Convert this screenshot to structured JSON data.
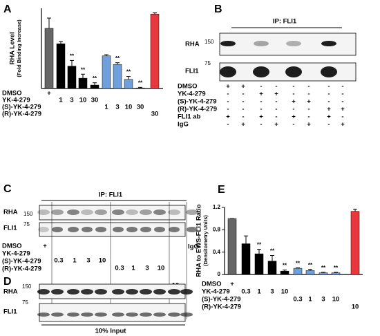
{
  "chart_data": [
    {
      "type": "bar",
      "panel": "A",
      "y_label": "RHA Level",
      "y_sublabel": "(Fold Binding Increase)",
      "values": [
        1.05,
        0.78,
        0.39,
        0.18,
        0.06,
        0.57,
        0.42,
        0.16,
        0.01,
        1.3
      ],
      "errors": [
        0.18,
        0.04,
        0.1,
        0.07,
        0.04,
        0.02,
        0.03,
        0.05,
        0.01,
        0.02
      ],
      "colors": [
        "#666666",
        "#000000",
        "#000000",
        "#000000",
        "#000000",
        "#6fa0dc",
        "#6fa0dc",
        "#6fa0dc",
        "#6fa0dc",
        "#e8383d"
      ],
      "significance": [
        null,
        null,
        "**",
        "**",
        "**",
        null,
        "**",
        "**",
        "**",
        null
      ],
      "ylim": [
        0,
        1.4
      ],
      "treatments": [
        {
          "label": "DMSO",
          "entries": [
            "+",
            null,
            null,
            null,
            null,
            null,
            null,
            null,
            null,
            null
          ]
        },
        {
          "label": "YK-4-279",
          "entries": [
            null,
            "1",
            "3",
            "10",
            "30",
            null,
            null,
            null,
            null,
            null
          ]
        },
        {
          "label": "(S)-YK-4-279",
          "entries": [
            null,
            null,
            null,
            null,
            null,
            "1",
            "3",
            "10",
            "30",
            null
          ]
        },
        {
          "label": "(R)-YK-4-279",
          "entries": [
            null,
            null,
            null,
            null,
            null,
            null,
            null,
            null,
            null,
            "30"
          ]
        }
      ]
    },
    {
      "type": "bar",
      "panel": "E",
      "y_label": "RHA to EWS-FLI1 Ratio",
      "y_sublabel": "(Densitometry Units)",
      "values": [
        1.0,
        0.55,
        0.37,
        0.24,
        0.06,
        0.11,
        0.07,
        0.03,
        0.03,
        1.13
      ],
      "errors": [
        0,
        0.14,
        0.08,
        0.1,
        0.02,
        0.01,
        0.02,
        0.01,
        0.01,
        0.04
      ],
      "colors": [
        "#666666",
        "#000000",
        "#000000",
        "#000000",
        "#000000",
        "#6fa0dc",
        "#6fa0dc",
        "#6fa0dc",
        "#6fa0dc",
        "#e8383d"
      ],
      "significance": [
        null,
        null,
        "**",
        "**",
        "**",
        "**",
        "**",
        "**",
        "**",
        null
      ],
      "ylim": [
        0,
        1.2
      ],
      "yticks": [
        0,
        0.4,
        0.8,
        1.2
      ],
      "treatments": [
        {
          "label": "DMSO",
          "entries": [
            "+",
            null,
            null,
            null,
            null,
            null,
            null,
            null,
            null,
            null
          ]
        },
        {
          "label": "YK-4-279",
          "entries": [
            null,
            "0.3",
            "1",
            "3",
            "10",
            null,
            null,
            null,
            null,
            null
          ]
        },
        {
          "label": "(S)-YK-4-279",
          "entries": [
            null,
            null,
            null,
            null,
            null,
            "0.3",
            "1",
            "3",
            "10",
            null
          ]
        },
        {
          "label": "(R)-YK-4-279",
          "entries": [
            null,
            null,
            null,
            null,
            null,
            null,
            null,
            null,
            null,
            "10"
          ]
        }
      ]
    }
  ],
  "blots": {
    "B": {
      "panel": "B",
      "title": "IP: FLI1",
      "bands": [
        {
          "label": "RHA",
          "marker": "150"
        },
        {
          "label": "FLI1",
          "marker": "75"
        }
      ],
      "treatments": [
        {
          "label": "DMSO",
          "entries": [
            "+",
            "+",
            "-",
            "-",
            "-",
            "-",
            "-",
            "-"
          ]
        },
        {
          "label": "YK-4-279",
          "entries": [
            "-",
            "-",
            "+",
            "+",
            "-",
            "-",
            "-",
            "-"
          ]
        },
        {
          "label": "(S)-YK-4-279",
          "entries": [
            "-",
            "-",
            "-",
            "-",
            "+",
            "+",
            "-",
            "-"
          ]
        },
        {
          "label": "(R)-YK-4-279",
          "entries": [
            "-",
            "-",
            "-",
            "-",
            "-",
            "-",
            "+",
            "+"
          ]
        },
        {
          "label": "FLI1 ab",
          "entries": [
            "+",
            "-",
            "+",
            "-",
            "+",
            "-",
            "+",
            "-"
          ]
        },
        {
          "label": "IgG",
          "entries": [
            "-",
            "+",
            "-",
            "+",
            "-",
            "+",
            "-",
            "+"
          ]
        }
      ]
    },
    "C": {
      "panel": "C",
      "title": "IP: FLI1",
      "bands": [
        {
          "label": "RHA",
          "marker": "150"
        },
        {
          "label": "FLI1",
          "marker": "75"
        }
      ],
      "treatments": [
        {
          "label": "DMSO",
          "entries": [
            "+",
            null,
            null,
            null,
            null,
            null,
            null,
            null,
            null,
            null
          ]
        },
        {
          "label": "YK-4-279",
          "entries": [
            null,
            "0.3",
            "1",
            "3",
            "10",
            null,
            null,
            null,
            null,
            null
          ]
        },
        {
          "label": "(S)-YK-4-279",
          "entries": [
            null,
            null,
            null,
            null,
            null,
            "0.3",
            "1",
            "3",
            "10",
            null
          ]
        },
        {
          "label": "(R)-YK-4-279",
          "entries": [
            null,
            null,
            null,
            null,
            null,
            null,
            null,
            null,
            null,
            "10"
          ]
        }
      ],
      "control_label": "IgG"
    },
    "D": {
      "panel": "D",
      "bands": [
        {
          "label": "RHA",
          "marker": "150"
        },
        {
          "label": "FLI1",
          "marker": "75"
        }
      ],
      "footer": "10% Input"
    }
  }
}
